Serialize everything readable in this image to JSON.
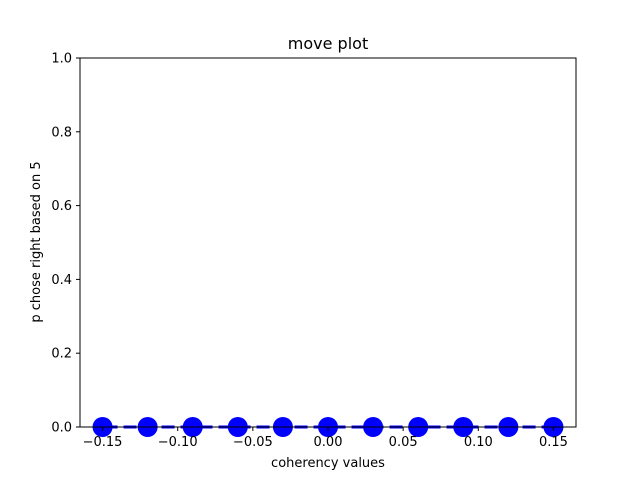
{
  "chart_data": {
    "type": "line",
    "title": "move plot",
    "xlabel": "coherency values",
    "ylabel": "p chose right based on 5",
    "xlim": [
      -0.165,
      0.165
    ],
    "ylim": [
      0.0,
      1.0
    ],
    "x_ticks": [
      -0.15,
      -0.1,
      -0.05,
      0.0,
      0.05,
      0.1,
      0.15
    ],
    "x_tick_labels": [
      "−0.15",
      "−0.10",
      "−0.05",
      "0.00",
      "0.05",
      "0.10",
      "0.15"
    ],
    "y_ticks": [
      0.0,
      0.2,
      0.4,
      0.6,
      0.8,
      1.0
    ],
    "y_tick_labels": [
      "0.0",
      "0.2",
      "0.4",
      "0.6",
      "0.8",
      "1.0"
    ],
    "grid": false,
    "series": [
      {
        "color": "#0000ff",
        "line_style": "dashed",
        "marker": "circle",
        "x": [
          -0.15,
          -0.12,
          -0.09,
          -0.06,
          -0.03,
          0.0,
          0.03,
          0.06,
          0.09,
          0.12,
          0.15
        ],
        "y": [
          0,
          0,
          0,
          0,
          0,
          0,
          0,
          0,
          0,
          0,
          0
        ]
      }
    ]
  }
}
